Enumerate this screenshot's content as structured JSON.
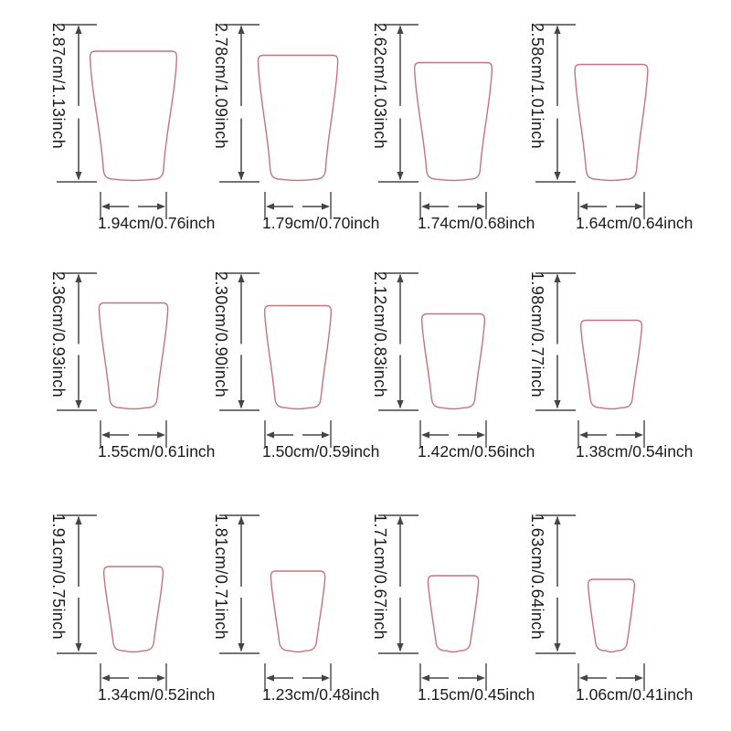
{
  "style": {
    "outline_color": "#c4737f",
    "dimension_line_color": "#454545",
    "text_color": "#1b1b1b",
    "background_color": "#ffffff"
  },
  "grid": {
    "rows": 3,
    "cols": 4
  },
  "sizes": [
    {
      "height_label": "2.87cm/1.13inch",
      "width_label": "1.94cm/0.76inch",
      "height_cm": 2.87,
      "height_inch": 1.13,
      "width_cm": 1.94,
      "width_inch": 0.76
    },
    {
      "height_label": "2.78cm/1.09inch",
      "width_label": "1.79cm/0.70inch",
      "height_cm": 2.78,
      "height_inch": 1.09,
      "width_cm": 1.79,
      "width_inch": 0.7
    },
    {
      "height_label": "2.62cm/1.03inch",
      "width_label": "1.74cm/0.68inch",
      "height_cm": 2.62,
      "height_inch": 1.03,
      "width_cm": 1.74,
      "width_inch": 0.68
    },
    {
      "height_label": "2.58cm/1.01inch",
      "width_label": "1.64cm/0.64inch",
      "height_cm": 2.58,
      "height_inch": 1.01,
      "width_cm": 1.64,
      "width_inch": 0.64
    },
    {
      "height_label": "2.36cm/0.93inch",
      "width_label": "1.55cm/0.61inch",
      "height_cm": 2.36,
      "height_inch": 0.93,
      "width_cm": 1.55,
      "width_inch": 0.61
    },
    {
      "height_label": "2.30cm/0.90inch",
      "width_label": "1.50cm/0.59inch",
      "height_cm": 2.3,
      "height_inch": 0.9,
      "width_cm": 1.5,
      "width_inch": 0.59
    },
    {
      "height_label": "2.12cm/0.83inch",
      "width_label": "1.42cm/0.56inch",
      "height_cm": 2.12,
      "height_inch": 0.83,
      "width_cm": 1.42,
      "width_inch": 0.56
    },
    {
      "height_label": "1.98cm/0.77inch",
      "width_label": "1.38cm/0.54inch",
      "height_cm": 1.98,
      "height_inch": 0.77,
      "width_cm": 1.38,
      "width_inch": 0.54
    },
    {
      "height_label": "1.91cm/0.75inch",
      "width_label": "1.34cm/0.52inch",
      "height_cm": 1.91,
      "height_inch": 0.75,
      "width_cm": 1.34,
      "width_inch": 0.52
    },
    {
      "height_label": "1.81cm/0.71inch",
      "width_label": "1.23cm/0.48inch",
      "height_cm": 1.81,
      "height_inch": 0.71,
      "width_cm": 1.23,
      "width_inch": 0.48
    },
    {
      "height_label": "1.71cm/0.67inch",
      "width_label": "1.15cm/0.45inch",
      "height_cm": 1.71,
      "height_inch": 0.67,
      "width_cm": 1.15,
      "width_inch": 0.45
    },
    {
      "height_label": "1.63cm/0.64inch",
      "width_label": "1.06cm/0.41inch",
      "height_cm": 1.63,
      "height_inch": 0.64,
      "width_cm": 1.06,
      "width_inch": 0.41
    }
  ]
}
